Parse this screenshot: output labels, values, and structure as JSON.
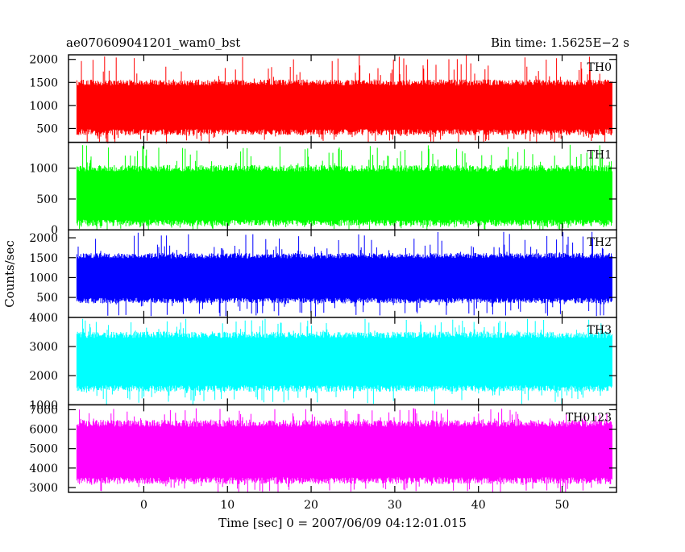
{
  "chart_data": {
    "type": "line",
    "title": "ae070609041201_wam0_bst",
    "bin_time_label": "Bin time: 1.5625E−2 s",
    "xlabel": "Time [sec] 0 = 2007/06/09 04:12:01.015",
    "ylabel": "Counts/sec",
    "xlim": [
      -9,
      56.5
    ],
    "x_ticks": [
      0,
      10,
      20,
      30,
      40,
      50
    ],
    "x_range_data": [
      -8,
      56
    ],
    "grid": false,
    "panels": [
      {
        "name": "TH0",
        "color": "#ff0000",
        "ylim": [
          200,
          2100
        ],
        "y_ticks": [
          500,
          1000,
          1500,
          2000
        ],
        "band_low": 420,
        "band_high": 1500,
        "spike_min": 160,
        "spike_max": 2100
      },
      {
        "name": "TH1",
        "color": "#00ff00",
        "ylim": [
          0,
          1420
        ],
        "y_ticks": [
          0,
          500,
          1000
        ],
        "band_low": 110,
        "band_high": 1000,
        "spike_min": 0,
        "spike_max": 1380
      },
      {
        "name": "TH2",
        "color": "#0000ff",
        "ylim": [
          0,
          2200
        ],
        "y_ticks": [
          500,
          1000,
          1500,
          2000
        ],
        "band_low": 420,
        "band_high": 1550,
        "spike_min": 20,
        "spike_max": 2150
      },
      {
        "name": "TH3",
        "color": "#00ffff",
        "ylim": [
          1000,
          4000
        ],
        "y_ticks": [
          1000,
          2000,
          3000,
          4000
        ],
        "band_low": 1560,
        "band_high": 3400,
        "spike_min": 1000,
        "spike_max": 3950
      },
      {
        "name": "TH0123",
        "color": "#ff00ff",
        "ylim": [
          2750,
          7250
        ],
        "y_ticks": [
          3000,
          4000,
          5000,
          6000,
          7000
        ],
        "band_low": 3350,
        "band_high": 6300,
        "spike_min": 2750,
        "spike_max": 7100
      }
    ]
  }
}
